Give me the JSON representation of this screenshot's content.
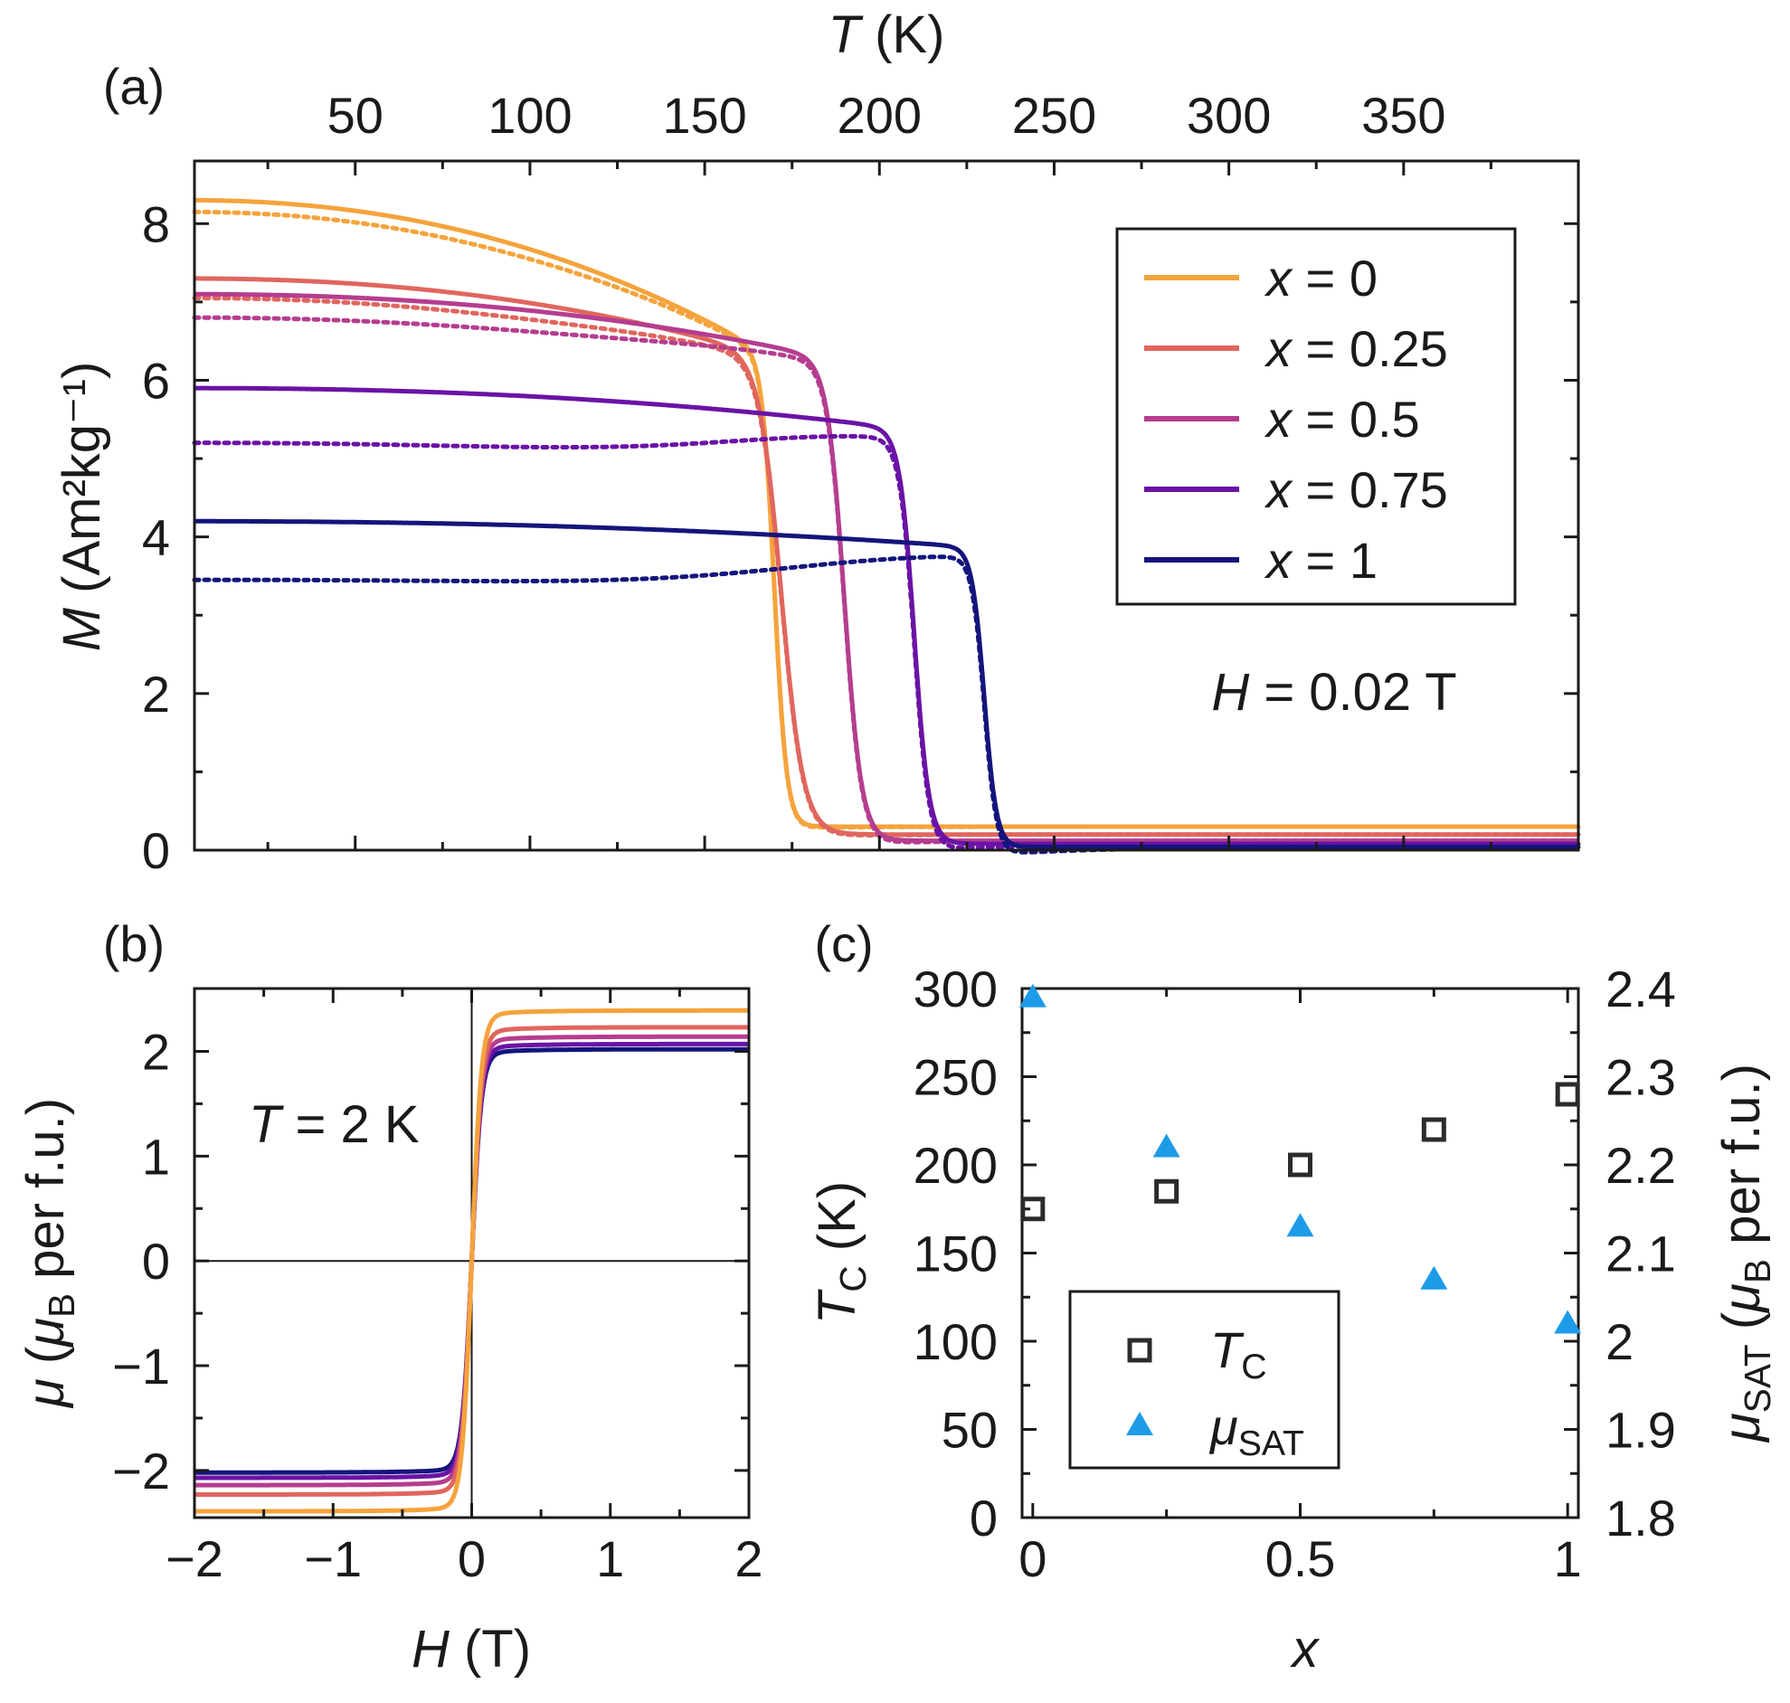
{
  "chart_data": [
    {
      "id": "a",
      "type": "line",
      "panel_label": "(a)",
      "x_top_label": {
        "italic": "T",
        "rest": " (K)"
      },
      "x_ticks": [
        50,
        100,
        150,
        200,
        250,
        300,
        350
      ],
      "xlim": [
        4,
        400
      ],
      "ylabel": {
        "italic": "M",
        "rest": " (Am²kg⁻¹)"
      },
      "y_ticks": [
        0,
        2,
        4,
        6,
        8
      ],
      "ylim": [
        0,
        8.8
      ],
      "annotation": {
        "italic": "H",
        "rest": " = 0.02 T"
      },
      "series": [
        {
          "name": "x = 0",
          "var": "x",
          "value": "0",
          "color": "#f5a33c",
          "Ms": 8.3,
          "Mzfc": 8.15,
          "Tc": 170,
          "width": 5,
          "tail": 0.3,
          "k": 2.4
        },
        {
          "name": "x = 0.25",
          "var": "x",
          "value": "0.25",
          "color": "#e0665e",
          "Ms": 7.3,
          "Mzfc": 7.05,
          "Tc": 172,
          "width": 9,
          "tail": 0.2,
          "k": 1.4
        },
        {
          "name": "x = 0.5",
          "var": "x",
          "value": "0.5",
          "color": "#b53d8f",
          "Ms": 7.1,
          "Mzfc": 6.8,
          "Tc": 190,
          "width": 7,
          "tail": 0.12,
          "k": 1.2
        },
        {
          "name": "x = 0.75",
          "var": "x",
          "value": "0.75",
          "color": "#6a13a6",
          "Ms": 5.9,
          "Mzfc": 5.2,
          "Tc": 210,
          "width": 6,
          "tail": 0.08,
          "k": 0.9
        },
        {
          "name": "x = 1",
          "var": "x",
          "value": "1",
          "color": "#14157c",
          "Ms": 4.2,
          "Mzfc": 3.45,
          "Tc": 230,
          "width": 5,
          "tail": 0.04,
          "k": 0.8
        }
      ]
    },
    {
      "id": "b",
      "type": "line",
      "panel_label": "(b)",
      "xlabel": {
        "italic": "H",
        "rest": " (T)"
      },
      "x_ticks": [
        -2,
        -1,
        0,
        1,
        2
      ],
      "x_tick_labels": [
        "−2",
        "−1",
        "0",
        "1",
        "2"
      ],
      "xlim": [
        -2,
        2
      ],
      "ylabel": {
        "italic": "μ",
        "rest": " (",
        "italic2": "μ",
        "sub": "B",
        "rest2": " per f.u.)"
      },
      "y_ticks": [
        -2,
        -1,
        0,
        1,
        2
      ],
      "y_tick_labels": [
        "−2",
        "−1",
        "0",
        "1",
        "2"
      ],
      "ylim": [
        -2.45,
        2.6
      ],
      "annotation": {
        "italic": "T",
        "rest": " = 2 K"
      },
      "series": [
        {
          "name": "x = 0",
          "color": "#f5a33c",
          "Msat": 2.39
        },
        {
          "name": "x = 0.25",
          "color": "#e0665e",
          "Msat": 2.23
        },
        {
          "name": "x = 0.5",
          "color": "#b53d8f",
          "Msat": 2.14
        },
        {
          "name": "x = 0.75",
          "color": "#6a13a6",
          "Msat": 2.07
        },
        {
          "name": "x = 1",
          "color": "#14157c",
          "Msat": 2.02
        }
      ]
    },
    {
      "id": "c",
      "type": "scatter",
      "panel_label": "(c)",
      "xlabel": "x",
      "x": [
        0,
        0.25,
        0.5,
        0.75,
        1
      ],
      "x_ticks": [
        0,
        0.5,
        1
      ],
      "x_tick_labels": [
        "0",
        "0.5",
        "1"
      ],
      "xlim": [
        -0.02,
        1.02
      ],
      "ylabel_left": {
        "italic": "T",
        "sub": "C",
        "rest": " (K)"
      },
      "y_ticks_left": [
        0,
        50,
        100,
        150,
        200,
        250,
        300
      ],
      "ylim_left": [
        0,
        300
      ],
      "ylabel_right": {
        "italic": "μ",
        "sub": "SAT",
        "rest": " (",
        "italic2": "μ",
        "sub2": "B",
        "rest2": " per f.u.)"
      },
      "y_ticks_right": [
        1.8,
        1.9,
        2.0,
        2.1,
        2.2,
        2.3,
        2.4
      ],
      "y_tick_labels_right": [
        "1.8",
        "1.9",
        "2",
        "2.1",
        "2.2",
        "2.3",
        "2.4"
      ],
      "ylim_right": [
        1.8,
        2.4
      ],
      "series": [
        {
          "name": "T_C",
          "label_main": "T",
          "label_sub": "C",
          "marker": "square",
          "color": "#2b2b2b",
          "axis": "left",
          "values": [
            175,
            185,
            200,
            220,
            240
          ]
        },
        {
          "name": "μ_SAT",
          "label_main": "μ",
          "label_sub": "SAT",
          "marker": "triangle",
          "color": "#1e9be8",
          "axis": "right",
          "values": [
            2.39,
            2.22,
            2.13,
            2.07,
            2.02
          ]
        }
      ]
    }
  ]
}
